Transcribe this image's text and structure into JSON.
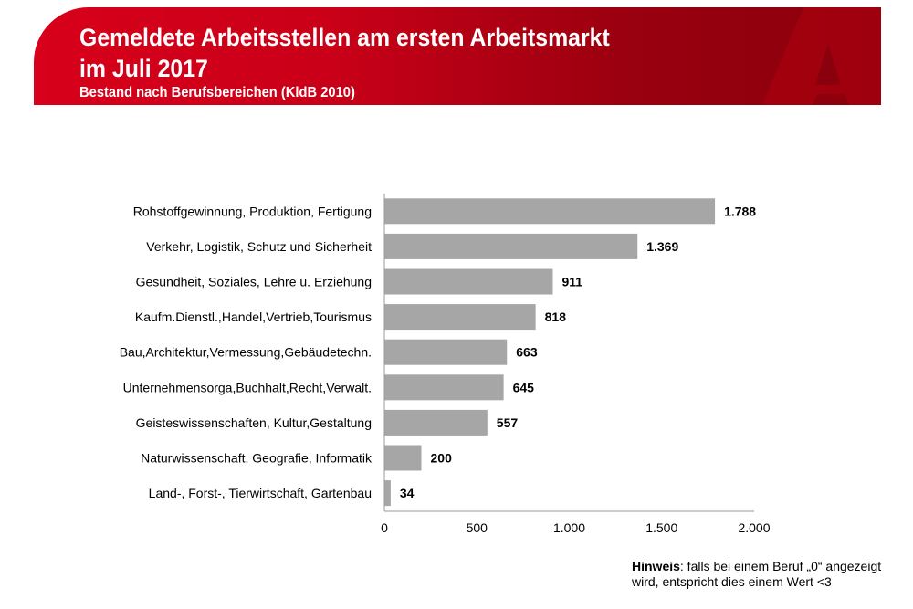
{
  "header": {
    "title_line1": "Gemeldete Arbeitsstellen am ersten Arbeitsmarkt",
    "title_line2": "im Juli 2017",
    "subtitle": "Bestand nach Berufsbereichen (KldB 2010)",
    "brand_color": "#d8001b"
  },
  "chart_data": {
    "type": "bar",
    "orientation": "horizontal",
    "categories": [
      "Rohstoffgewinnung, Produktion, Fertigung",
      "Verkehr, Logistik, Schutz und Sicherheit",
      "Gesundheit, Soziales, Lehre u. Erziehung",
      "Kaufm.Dienstl.,Handel,Vertrieb,Tourismus",
      "Bau,Architektur,Vermessung,Gebäudetechn.",
      "Unternehmensorga,Buchhalt,Recht,Verwalt.",
      "Geisteswissenschaften, Kultur,Gestaltung",
      "Naturwissenschaft, Geografie, Informatik",
      "Land-, Forst-, Tierwirtschaft, Gartenbau"
    ],
    "values": [
      1788,
      1369,
      911,
      818,
      663,
      645,
      557,
      200,
      34
    ],
    "value_labels": [
      "1.788",
      "1.369",
      "911",
      "818",
      "663",
      "645",
      "557",
      "200",
      "34"
    ],
    "xlim": [
      0,
      2000
    ],
    "xticks": [
      0,
      500,
      1000,
      1500,
      2000
    ],
    "xtick_labels": [
      "0",
      "500",
      "1.000",
      "1.500",
      "2.000"
    ],
    "bar_color": "#a6a6a6",
    "grid": false
  },
  "note": {
    "bold": "Hinweis",
    "text": ": falls bei einem Beruf „0“ angezeigt wird, entspricht dies einem Wert <3"
  }
}
